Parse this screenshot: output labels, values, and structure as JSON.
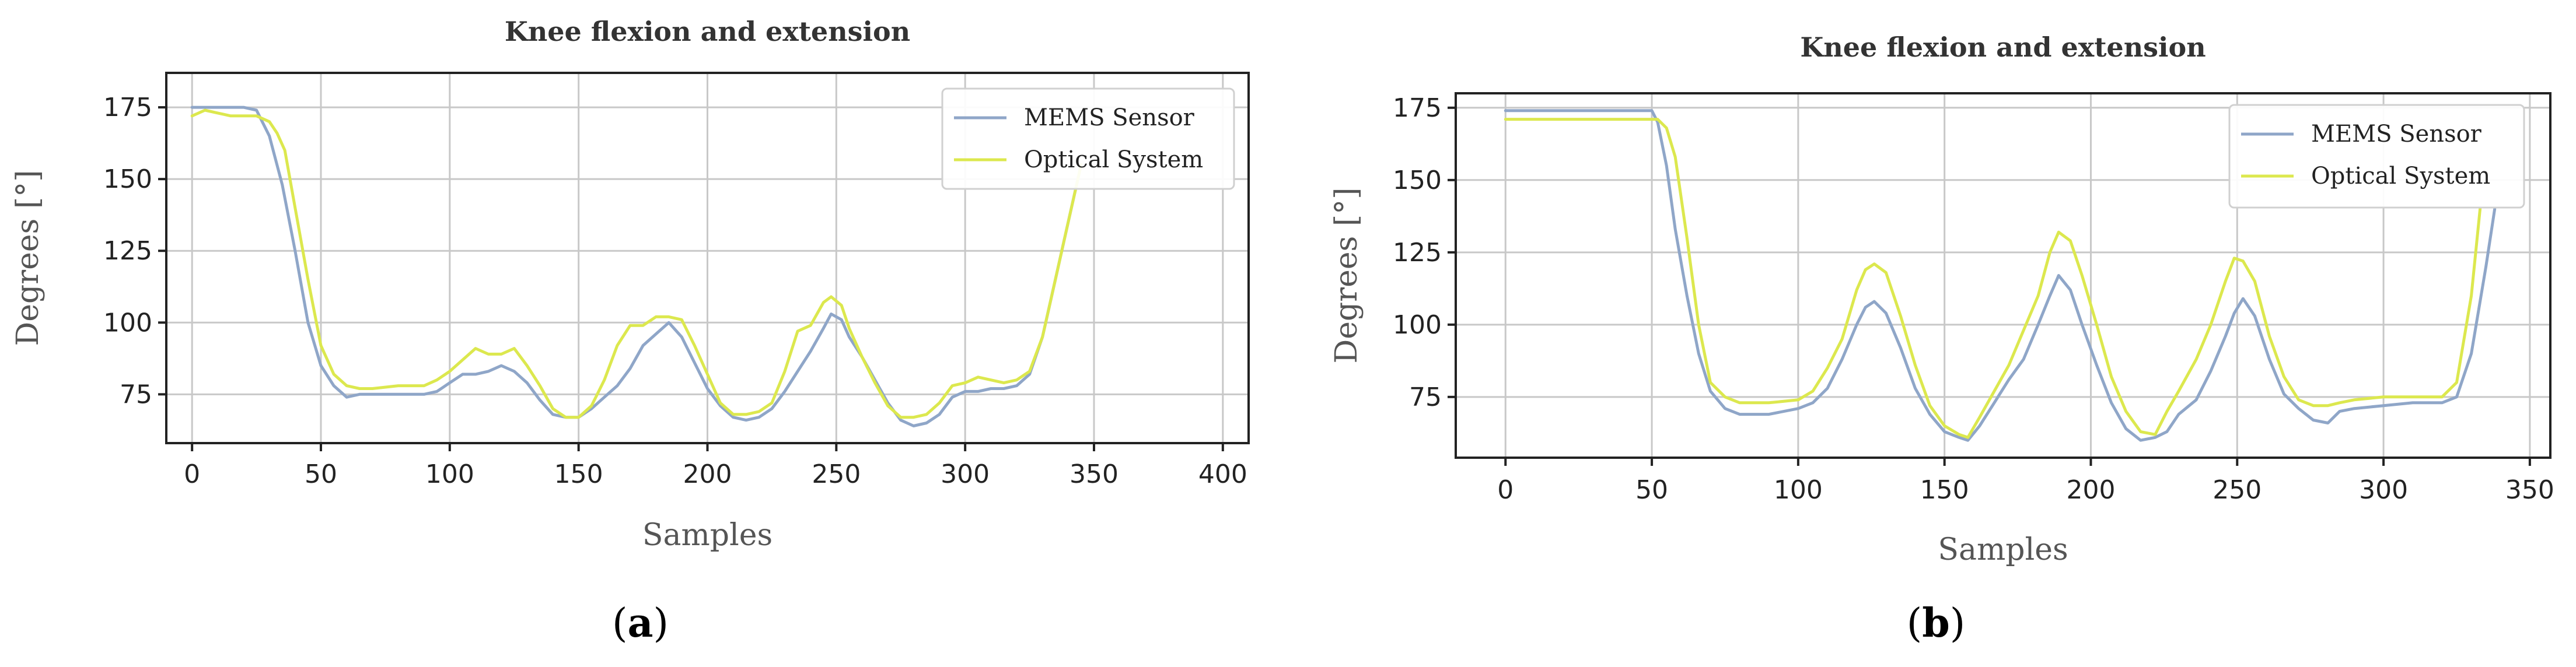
{
  "chart_data": [
    {
      "type": "line",
      "panel_label": "a",
      "title": "Knee flexion and extension",
      "xlabel": "Samples",
      "ylabel": "Degrees [°]",
      "xlim": [
        -10,
        410
      ],
      "ylim": [
        58,
        187
      ],
      "xticks": [
        0,
        50,
        100,
        150,
        200,
        250,
        300,
        350,
        400
      ],
      "yticks": [
        75,
        100,
        125,
        150,
        175
      ],
      "grid": true,
      "legend_position": "top-right",
      "series": [
        {
          "name": "MEMS Sensor",
          "color": "#8fa6c8",
          "x": [
            0,
            10,
            20,
            25,
            30,
            35,
            40,
            45,
            50,
            55,
            60,
            65,
            70,
            80,
            90,
            95,
            100,
            105,
            110,
            115,
            120,
            125,
            130,
            135,
            140,
            145,
            150,
            155,
            160,
            165,
            170,
            175,
            180,
            185,
            190,
            195,
            200,
            205,
            210,
            215,
            220,
            225,
            230,
            235,
            240,
            245,
            248,
            252,
            255,
            260,
            265,
            270,
            275,
            280,
            285,
            290,
            295,
            300,
            305,
            310,
            315,
            320,
            325,
            330,
            335,
            340,
            345
          ],
          "y": [
            175,
            175,
            175,
            174,
            165,
            148,
            125,
            100,
            85,
            78,
            74,
            75,
            75,
            75,
            75,
            76,
            79,
            82,
            82,
            83,
            85,
            83,
            79,
            73,
            68,
            67,
            67,
            70,
            74,
            78,
            84,
            92,
            96,
            100,
            95,
            86,
            77,
            71,
            67,
            66,
            67,
            70,
            76,
            83,
            90,
            98,
            103,
            101,
            95,
            88,
            80,
            72,
            66,
            64,
            65,
            68,
            74,
            76,
            76,
            77,
            77,
            78,
            82,
            95,
            115,
            135,
            155
          ]
        },
        {
          "name": "Optical System",
          "color": "#dce84e",
          "x": [
            0,
            5,
            10,
            15,
            20,
            25,
            30,
            33,
            36,
            40,
            45,
            50,
            55,
            60,
            65,
            70,
            80,
            90,
            95,
            100,
            105,
            110,
            115,
            120,
            125,
            130,
            135,
            140,
            145,
            150,
            155,
            160,
            165,
            170,
            175,
            180,
            185,
            190,
            195,
            200,
            205,
            210,
            215,
            220,
            225,
            230,
            235,
            240,
            245,
            248,
            252,
            255,
            260,
            265,
            270,
            275,
            280,
            285,
            290,
            295,
            300,
            305,
            310,
            315,
            320,
            325,
            330,
            335,
            340,
            345
          ],
          "y": [
            172,
            174,
            173,
            172,
            172,
            172,
            170,
            166,
            160,
            140,
            115,
            92,
            82,
            78,
            77,
            77,
            78,
            78,
            80,
            83,
            87,
            91,
            89,
            89,
            91,
            85,
            78,
            70,
            67,
            67,
            71,
            80,
            92,
            99,
            99,
            102,
            102,
            101,
            92,
            82,
            72,
            68,
            68,
            69,
            72,
            83,
            97,
            99,
            107,
            109,
            106,
            98,
            88,
            79,
            71,
            67,
            67,
            68,
            72,
            78,
            79,
            81,
            80,
            79,
            80,
            83,
            95,
            115,
            135,
            155
          ]
        }
      ]
    },
    {
      "type": "line",
      "panel_label": "b",
      "title": "Knee flexion and extension",
      "xlabel": "Samples",
      "ylabel": "Degrees [°]",
      "xlim": [
        -17,
        357
      ],
      "ylim": [
        54,
        180
      ],
      "xticks": [
        0,
        50,
        100,
        150,
        200,
        250,
        300,
        350
      ],
      "yticks": [
        75,
        100,
        125,
        150,
        175
      ],
      "grid": true,
      "legend_position": "top-right",
      "series": [
        {
          "name": "MEMS Sensor",
          "color": "#8fa6c8",
          "x": [
            0,
            10,
            20,
            30,
            40,
            50,
            52,
            55,
            58,
            62,
            66,
            70,
            75,
            80,
            85,
            90,
            100,
            105,
            110,
            115,
            120,
            123,
            126,
            130,
            135,
            140,
            145,
            150,
            155,
            158,
            162,
            167,
            172,
            177,
            182,
            186,
            189,
            193,
            197,
            202,
            207,
            212,
            217,
            222,
            226,
            230,
            236,
            241,
            246,
            249,
            252,
            256,
            261,
            266,
            271,
            276,
            281,
            285,
            290,
            300,
            310,
            320,
            325,
            330,
            335,
            338
          ],
          "y": [
            174,
            174,
            174,
            174,
            174,
            174,
            170,
            155,
            133,
            110,
            90,
            77,
            71,
            69,
            69,
            69,
            71,
            73,
            78,
            88,
            100,
            106,
            108,
            104,
            92,
            78,
            69,
            63,
            61,
            60,
            65,
            73,
            81,
            88,
            100,
            110,
            117,
            112,
            100,
            86,
            73,
            64,
            60,
            61,
            63,
            69,
            74,
            84,
            96,
            104,
            109,
            103,
            88,
            76,
            71,
            67,
            66,
            70,
            71,
            72,
            73,
            73,
            75,
            90,
            120,
            140
          ]
        },
        {
          "name": "Optical System",
          "color": "#dce84e",
          "x": [
            0,
            10,
            20,
            30,
            40,
            50,
            52,
            55,
            58,
            62,
            66,
            70,
            75,
            80,
            85,
            90,
            100,
            105,
            110,
            115,
            120,
            123,
            126,
            130,
            135,
            140,
            145,
            150,
            155,
            158,
            162,
            167,
            172,
            177,
            182,
            186,
            189,
            193,
            197,
            202,
            207,
            212,
            217,
            222,
            226,
            230,
            236,
            241,
            246,
            249,
            252,
            256,
            261,
            266,
            271,
            276,
            281,
            285,
            290,
            300,
            310,
            320,
            325,
            330,
            333
          ],
          "y": [
            171,
            171,
            171,
            171,
            171,
            171,
            171,
            168,
            158,
            130,
            100,
            80,
            75,
            73,
            73,
            73,
            74,
            77,
            85,
            95,
            112,
            119,
            121,
            118,
            103,
            86,
            72,
            65,
            62,
            61,
            68,
            77,
            86,
            98,
            110,
            125,
            132,
            129,
            117,
            100,
            82,
            70,
            63,
            62,
            70,
            77,
            88,
            100,
            115,
            123,
            122,
            115,
            96,
            82,
            74,
            72,
            72,
            73,
            74,
            75,
            75,
            75,
            80,
            110,
            140
          ]
        }
      ]
    }
  ]
}
